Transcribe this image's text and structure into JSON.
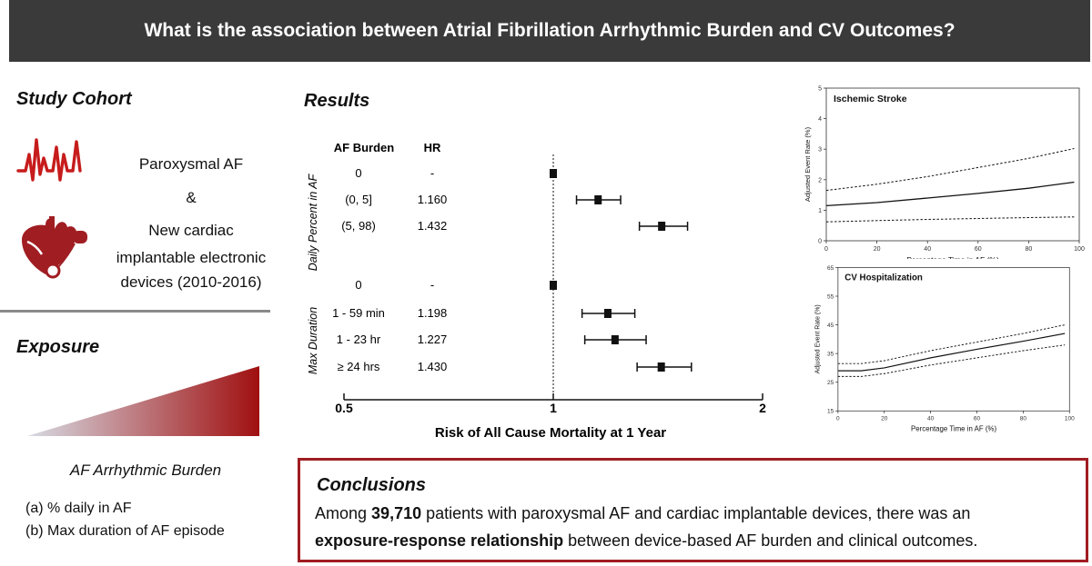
{
  "banner": {
    "title": "What is the association between Atrial Fibrillation Arrhythmic Burden and CV Outcomes?"
  },
  "cohort": {
    "heading": "Study Cohort",
    "line1": "Paroxysmal AF",
    "line2": "&",
    "line3": "New cardiac",
    "line4": "implantable electronic",
    "line5": "devices (2010-2016)"
  },
  "exposure": {
    "heading": "Exposure",
    "burden_label": "AF Arrhythmic Burden",
    "items": [
      "(a)   % daily in AF",
      "(b)   Max duration of AF episode"
    ]
  },
  "results": {
    "heading": "Results"
  },
  "colors": {
    "accent": "#a01d22",
    "banner": "#3a3a3a"
  },
  "chart_data": [
    {
      "type": "forest",
      "xlabel": "Risk of All Cause Mortality at 1 Year",
      "xlim": [
        0.5,
        2
      ],
      "xticks": [
        "0.5",
        "1",
        "2"
      ],
      "reference_line": 1,
      "column_headers": [
        "AF Burden",
        "HR"
      ],
      "groups": [
        {
          "name": "Daily Percent in AF",
          "rows": [
            {
              "label": "0",
              "hr_text": "-",
              "hr": 1.0,
              "ci": null
            },
            {
              "label": "(0, 5]",
              "hr_text": "1.160",
              "hr": 1.16,
              "ci": [
                1.08,
                1.25
              ]
            },
            {
              "label": "(5, 98)",
              "hr_text": "1.432",
              "hr": 1.432,
              "ci": [
                1.33,
                1.56
              ]
            }
          ]
        },
        {
          "name": "Max Duration",
          "rows": [
            {
              "label": "0",
              "hr_text": "-",
              "hr": 1.0,
              "ci": null
            },
            {
              "label": "1 - 59 min",
              "hr_text": "1.198",
              "hr": 1.198,
              "ci": [
                1.1,
                1.31
              ]
            },
            {
              "label": "1 - 23 hr",
              "hr_text": "1.227",
              "hr": 1.227,
              "ci": [
                1.11,
                1.36
              ]
            },
            {
              "label": "≥ 24 hrs",
              "hr_text": "1.430",
              "hr": 1.43,
              "ci": [
                1.32,
                1.58
              ]
            }
          ]
        }
      ]
    },
    {
      "type": "line",
      "title": "Ischemic Stroke",
      "xlabel": "Percentage Time in AF (%)",
      "ylabel": "Adjusted Event Rate (%)",
      "xlim": [
        0,
        100
      ],
      "ylim": [
        0,
        5
      ],
      "xticks": [
        0,
        20,
        40,
        60,
        80,
        100
      ],
      "yticks": [
        0,
        1,
        2,
        3,
        4,
        5
      ],
      "x": [
        0,
        20,
        40,
        60,
        80,
        98
      ],
      "series": [
        {
          "values": [
            1.15,
            1.25,
            1.4,
            1.55,
            1.72,
            1.92
          ],
          "style": "solid"
        },
        {
          "values": [
            1.65,
            1.85,
            2.1,
            2.4,
            2.7,
            3.02
          ],
          "style": "dashed"
        },
        {
          "values": [
            0.62,
            0.66,
            0.7,
            0.73,
            0.76,
            0.78
          ],
          "style": "dashed"
        }
      ]
    },
    {
      "type": "line",
      "title": "CV Hospitalization",
      "xlabel": "Percentage Time in AF (%)",
      "ylabel": "Adjusted Event Rate (%)",
      "xlim": [
        0,
        100
      ],
      "ylim": [
        15,
        65
      ],
      "xticks": [
        0,
        20,
        40,
        60,
        80,
        100
      ],
      "yticks": [
        15,
        25,
        35,
        45,
        55,
        65
      ],
      "x": [
        0,
        10,
        20,
        40,
        60,
        80,
        98
      ],
      "series": [
        {
          "values": [
            29,
            29,
            30,
            33.5,
            36.5,
            39.3,
            42
          ],
          "style": "solid"
        },
        {
          "values": [
            31.5,
            31.5,
            32.5,
            36,
            39,
            42,
            45
          ],
          "style": "dashed"
        },
        {
          "values": [
            27,
            27,
            28,
            31,
            33.5,
            36,
            38
          ],
          "style": "dashed"
        }
      ]
    }
  ],
  "conclusions": {
    "heading": "Conclusions",
    "l1_pre": "Among ",
    "l1_bold": "39,710",
    "l1_post": " patients with paroxysmal AF and cardiac implantable devices, there was an",
    "l2_bold": "exposure-response relationship",
    "l2_post": " between device-based AF burden and clinical outcomes."
  }
}
